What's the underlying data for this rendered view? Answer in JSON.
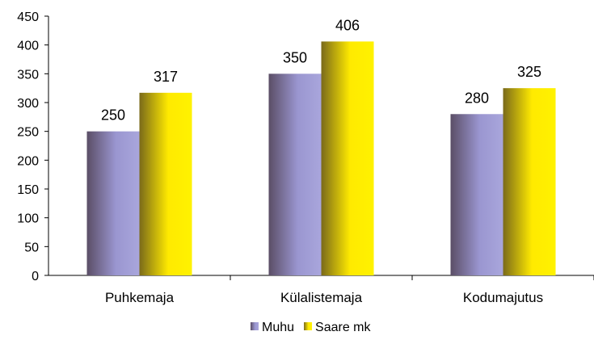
{
  "chart_data": {
    "type": "bar",
    "categories": [
      "Puhkemaja",
      "Külalistemaja",
      "Kodumajutus"
    ],
    "series": [
      {
        "name": "Muhu",
        "values": [
          250,
          350,
          280
        ],
        "color": "#9a96d0"
      },
      {
        "name": "Saare mk",
        "values": [
          317,
          406,
          325
        ],
        "color": "#ffe800"
      }
    ],
    "ylim": [
      0,
      450
    ],
    "yticks": [
      0,
      50,
      100,
      150,
      200,
      250,
      300,
      350,
      400,
      450
    ],
    "grid": false,
    "legend": "bottom-center",
    "title": "",
    "xlabel": "",
    "ylabel": ""
  }
}
